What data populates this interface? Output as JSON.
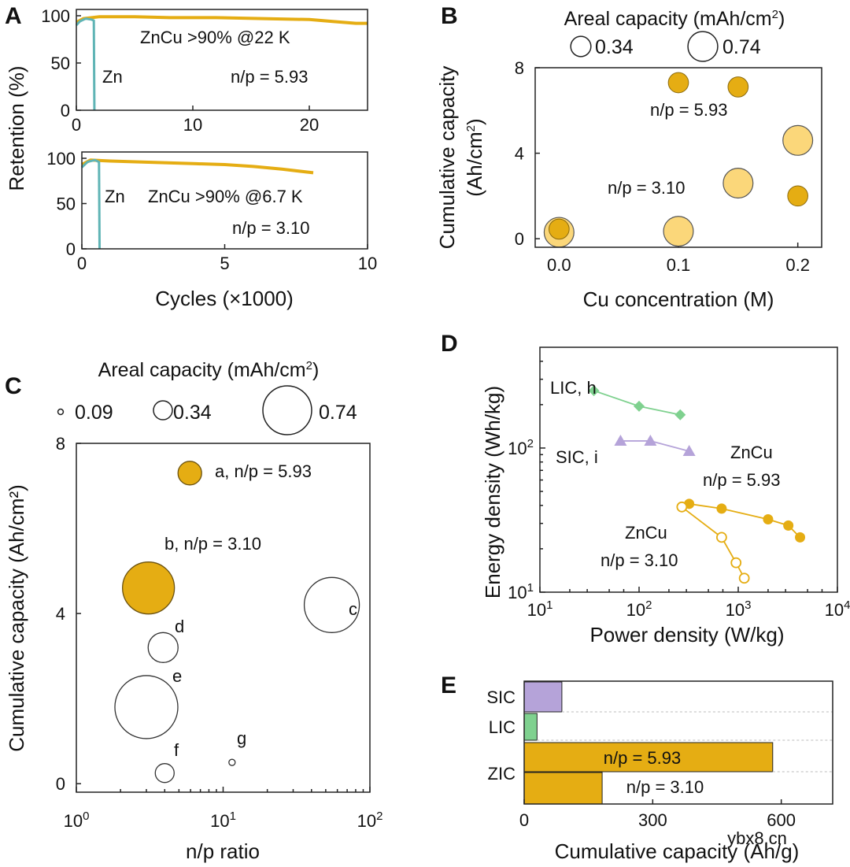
{
  "chart_data": [
    {
      "panel": "A",
      "type": "line",
      "subplots": [
        {
          "xlim": [
            0,
            25
          ],
          "xticks": [
            0,
            10,
            20
          ],
          "ylim": [
            0,
            100
          ],
          "yticks": [
            0,
            50,
            100
          ],
          "series": [
            {
              "name": "ZnCu",
              "color": "#e5ad13",
              "x": [
                0,
                0.6,
                2,
                5,
                8,
                12,
                16,
                20,
                22,
                24,
                25
              ],
              "y": [
                93,
                97,
                99,
                99,
                98,
                98,
                97,
                96,
                94,
                92,
                92
              ]
            },
            {
              "name": "Zn",
              "color": "#5fb4b5",
              "x": [
                0,
                0.3,
                0.8,
                1.3,
                1.5,
                1.55
              ],
              "y": [
                90,
                94,
                97,
                96,
                95,
                0
              ]
            }
          ],
          "annotations": [
            "ZnCu >90% @22 K",
            "Zn",
            "n/p = 5.93"
          ]
        },
        {
          "xlim": [
            0,
            10
          ],
          "xticks": [
            0,
            5,
            10
          ],
          "ylim": [
            0,
            100
          ],
          "yticks": [
            0,
            50,
            100
          ],
          "series": [
            {
              "name": "ZnCu",
              "color": "#e5ad13",
              "x": [
                0,
                0.3,
                1,
                2,
                3,
                4,
                5,
                6,
                7,
                8.1
              ],
              "y": [
                93,
                98,
                97,
                96,
                95,
                94,
                93,
                91,
                88,
                84
              ]
            },
            {
              "name": "Zn",
              "color": "#5fb4b5",
              "x": [
                0,
                0.2,
                0.45,
                0.6,
                0.62
              ],
              "y": [
                90,
                96,
                98,
                96,
                0
              ]
            }
          ],
          "annotations": [
            "Zn",
            "ZnCu >90% @6.7 K",
            "n/p = 3.10"
          ]
        }
      ],
      "xlabel": "Cycles (×1000)",
      "ylabel": "Retention (%)"
    },
    {
      "panel": "B",
      "type": "scatter",
      "legend_title": "Areal capacity (mAh/cm²)",
      "legend": [
        "0.34",
        "0.74"
      ],
      "xlabel": "Cu concentration (M)",
      "ylabel": "Cumulative capacity",
      "ylabel_unit": "(Ah/cm²)",
      "xlim": [
        -0.02,
        0.22
      ],
      "ylim": [
        -0.4,
        8
      ],
      "xticks": [
        "0.0",
        "0.1",
        "0.2"
      ],
      "yticks": [
        0,
        4,
        8
      ],
      "series": [
        {
          "name": "n/p = 5.93",
          "points": [
            {
              "x": 0.0,
              "y": 0.45,
              "areal": 0.34
            },
            {
              "x": 0.1,
              "y": 7.3,
              "areal": 0.34
            },
            {
              "x": 0.15,
              "y": 7.1,
              "areal": 0.34
            },
            {
              "x": 0.2,
              "y": 2.0,
              "areal": 0.34
            }
          ]
        },
        {
          "name": "n/p = 3.10",
          "points": [
            {
              "x": 0.0,
              "y": 0.3,
              "areal": 0.74
            },
            {
              "x": 0.1,
              "y": 0.35,
              "areal": 0.74
            },
            {
              "x": 0.15,
              "y": 2.6,
              "areal": 0.74
            },
            {
              "x": 0.2,
              "y": 4.6,
              "areal": 0.74
            }
          ]
        }
      ],
      "annotations": [
        "n/p = 5.93",
        "n/p = 3.10"
      ]
    },
    {
      "panel": "C",
      "type": "scatter",
      "legend_title": "Areal capacity (mAh/cm²)",
      "legend": [
        "0.09",
        "0.34",
        "0.74"
      ],
      "xlabel": "n/p ratio",
      "ylabel": "Cumulative capacity (Ah/cm²)",
      "xscale": "log",
      "xlim": [
        1,
        100
      ],
      "ylim": [
        -0.2,
        8
      ],
      "yticks": [
        0,
        4,
        8
      ],
      "points": [
        {
          "label": "a, n/p = 5.93",
          "x": 5.93,
          "y": 7.3,
          "areal": 0.34,
          "filled": true
        },
        {
          "label": "b, n/p = 3.10",
          "x": 3.1,
          "y": 4.6,
          "areal": 0.74,
          "filled": true
        },
        {
          "label": "c",
          "x": 55,
          "y": 4.2,
          "areal": 0.74,
          "filled": false
        },
        {
          "label": "d",
          "x": 3.9,
          "y": 3.2,
          "areal": 0.34,
          "filled": false
        },
        {
          "label": "e",
          "x": 3.0,
          "y": 1.8,
          "areal": 0.9,
          "filled": false
        },
        {
          "label": "f",
          "x": 4.0,
          "y": 0.25,
          "areal": 0.22,
          "filled": false
        },
        {
          "label": "g",
          "x": 11.5,
          "y": 0.5,
          "areal": 0.09,
          "filled": false
        }
      ]
    },
    {
      "panel": "D",
      "type": "line",
      "xlabel": "Power density (W/kg)",
      "ylabel": "Energy density (Wh/kg)",
      "xscale": "log",
      "yscale": "log",
      "xlim": [
        10,
        10000
      ],
      "ylim": [
        10,
        500
      ],
      "series": [
        {
          "name": "LIC, h",
          "marker": "diamond",
          "color": "#7fd18f",
          "x": [
            35,
            100,
            260
          ],
          "y": [
            250,
            195,
            170
          ]
        },
        {
          "name": "SIC, i",
          "marker": "triangle",
          "color": "#b5a3d9",
          "x": [
            65,
            130,
            320
          ],
          "y": [
            112,
            112,
            95
          ]
        },
        {
          "name": "ZnCu n/p = 5.93",
          "marker": "circle-filled",
          "color": "#e5ad13",
          "x": [
            320,
            680,
            2000,
            3200,
            4200
          ],
          "y": [
            41,
            38,
            32,
            29,
            24
          ]
        },
        {
          "name": "ZnCu n/p = 3.10",
          "marker": "circle-open",
          "color": "#e5ad13",
          "x": [
            270,
            680,
            950,
            1150
          ],
          "y": [
            39,
            24,
            16,
            12.5
          ]
        }
      ],
      "annotations": [
        "LIC, h",
        "SIC, i",
        "ZnCu",
        "n/p = 5.93",
        "ZnCu",
        "n/p = 3.10"
      ]
    },
    {
      "panel": "E",
      "type": "bar",
      "orientation": "horizontal",
      "xlabel": "Cumulative capacity (Ah/g)",
      "xlim": [
        0,
        720
      ],
      "xticks": [
        0,
        300,
        600
      ],
      "categories": [
        "SIC",
        "LIC",
        "ZIC"
      ],
      "bars": [
        {
          "category": "SIC",
          "value": 88,
          "color": "#b5a3d9",
          "label": ""
        },
        {
          "category": "LIC",
          "value": 30,
          "color": "#7fd18f",
          "label": ""
        },
        {
          "category": "ZIC",
          "value": 580,
          "color": "#e5ad13",
          "label": "n/p = 5.93"
        },
        {
          "category": "ZIC",
          "value": 182,
          "color": "#e5ad13",
          "label": "n/p = 3.10"
        }
      ]
    }
  ],
  "watermark": "ybx8.cn"
}
